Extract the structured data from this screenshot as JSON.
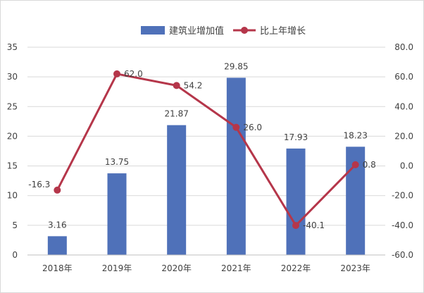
{
  "chart_data": {
    "type": "bar",
    "categories": [
      "2018年",
      "2019年",
      "2020年",
      "2021年",
      "2022年",
      "2023年"
    ],
    "series": [
      {
        "name": "建筑业增加值",
        "type": "bar",
        "axis": "left",
        "values": [
          3.16,
          13.75,
          21.87,
          29.85,
          17.93,
          18.23
        ],
        "labels": [
          "3.16",
          "13.75",
          "21.87",
          "29.85",
          "17.93",
          "18.23"
        ],
        "color": "#4f71b9"
      },
      {
        "name": "比上年增长",
        "type": "line",
        "axis": "right",
        "values": [
          -16.3,
          62.0,
          54.2,
          26.0,
          -40.1,
          0.8
        ],
        "labels": [
          "-16.3",
          "62.0",
          "54.2",
          "26.0",
          "-40.1",
          "0.8"
        ],
        "color": "#b5364a"
      }
    ],
    "y_left": {
      "ylim": [
        0,
        35
      ],
      "ticks": [
        0,
        5,
        10,
        15,
        20,
        25,
        30,
        35
      ],
      "tick_labels": [
        "0",
        "5",
        "10",
        "15",
        "20",
        "25",
        "30",
        "35"
      ]
    },
    "y_right": {
      "ylim": [
        -60,
        80
      ],
      "ticks": [
        -60,
        -40,
        -20,
        0,
        20,
        40,
        60,
        80
      ],
      "tick_labels": [
        "-60.0",
        "-40.0",
        "-20.0",
        "0.0",
        "20.0",
        "40.0",
        "60.0",
        "80.0"
      ]
    },
    "grid": true,
    "legend": "top-right"
  }
}
